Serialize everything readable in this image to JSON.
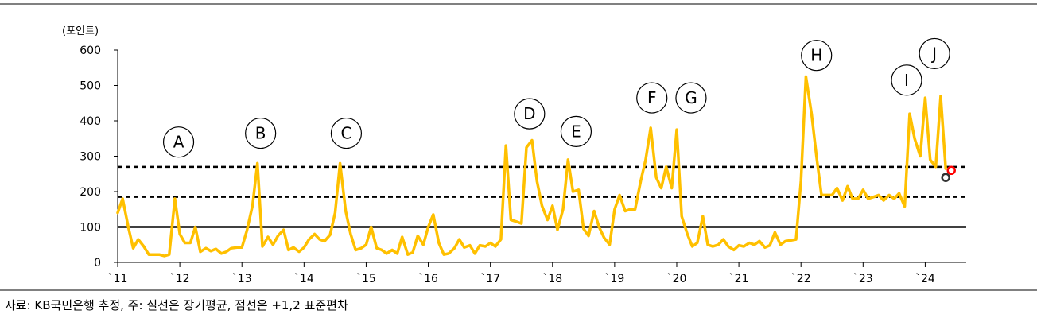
{
  "chart_data": {
    "type": "line",
    "y_unit_label": "(포인트)",
    "ylim": [
      0,
      600
    ],
    "yticks": [
      0,
      100,
      200,
      300,
      400,
      500,
      600
    ],
    "xlim": [
      2011,
      2024.75
    ],
    "x_ticks": [
      {
        "label": "`11",
        "x": 2011
      },
      {
        "label": "`12",
        "x": 2012
      },
      {
        "label": "`13",
        "x": 2013
      },
      {
        "label": "`14",
        "x": 2014
      },
      {
        "label": "`15",
        "x": 2015
      },
      {
        "label": "`16",
        "x": 2016
      },
      {
        "label": "`17",
        "x": 2017
      },
      {
        "label": "`18",
        "x": 2018
      },
      {
        "label": "`19",
        "x": 2019
      },
      {
        "label": "`20",
        "x": 2020
      },
      {
        "label": "`21",
        "x": 2021
      },
      {
        "label": "`22",
        "x": 2022
      },
      {
        "label": "`23",
        "x": 2023
      },
      {
        "label": "`24",
        "x": 2024
      }
    ],
    "grid": false,
    "series": [
      {
        "color": "#FFC000",
        "x": [
          2011.0,
          2011.08,
          2011.17,
          2011.25,
          2011.33,
          2011.42,
          2011.5,
          2011.58,
          2011.67,
          2011.75,
          2011.83,
          2011.92,
          2012.0,
          2012.08,
          2012.17,
          2012.25,
          2012.33,
          2012.42,
          2012.5,
          2012.58,
          2012.67,
          2012.75,
          2012.83,
          2012.92,
          2013.0,
          2013.08,
          2013.17,
          2013.25,
          2013.33,
          2013.42,
          2013.5,
          2013.58,
          2013.67,
          2013.75,
          2013.83,
          2013.92,
          2014.0,
          2014.08,
          2014.17,
          2014.25,
          2014.33,
          2014.42,
          2014.5,
          2014.58,
          2014.67,
          2014.75,
          2014.83,
          2014.92,
          2015.0,
          2015.08,
          2015.17,
          2015.25,
          2015.33,
          2015.42,
          2015.5,
          2015.58,
          2015.67,
          2015.75,
          2015.83,
          2015.92,
          2016.0,
          2016.08,
          2016.17,
          2016.25,
          2016.33,
          2016.42,
          2016.5,
          2016.58,
          2016.67,
          2016.75,
          2016.83,
          2016.92,
          2017.0,
          2017.08,
          2017.17,
          2017.25,
          2017.33,
          2017.42,
          2017.5,
          2017.58,
          2017.67,
          2017.75,
          2017.83,
          2017.92,
          2018.0,
          2018.08,
          2018.17,
          2018.25,
          2018.33,
          2018.42,
          2018.5,
          2018.58,
          2018.67,
          2018.75,
          2018.83,
          2018.92,
          2019.0,
          2019.08,
          2019.17,
          2019.25,
          2019.33,
          2019.42,
          2019.5,
          2019.58,
          2019.67,
          2019.75,
          2019.83,
          2019.92,
          2020.0,
          2020.08,
          2020.17,
          2020.25,
          2020.33,
          2020.42,
          2020.5,
          2020.58,
          2020.67,
          2020.75,
          2020.83,
          2020.92,
          2021.0,
          2021.08,
          2021.17,
          2021.25,
          2021.33,
          2021.42,
          2021.5,
          2021.58,
          2021.67,
          2021.75,
          2021.83,
          2021.92,
          2022.0,
          2022.08,
          2022.17,
          2022.25,
          2022.33,
          2022.42,
          2022.5,
          2022.58,
          2022.67,
          2022.75,
          2022.83,
          2022.92,
          2023.0,
          2023.08,
          2023.17,
          2023.25,
          2023.33,
          2023.42,
          2023.5,
          2023.58,
          2023.67,
          2023.75,
          2023.83,
          2023.92,
          2024.0,
          2024.08,
          2024.17,
          2024.25,
          2024.33
        ],
        "values": [
          140,
          180,
          100,
          40,
          65,
          45,
          22,
          22,
          22,
          18,
          22,
          180,
          80,
          55,
          55,
          100,
          30,
          40,
          32,
          38,
          25,
          30,
          40,
          42,
          42,
          90,
          160,
          280,
          45,
          72,
          50,
          75,
          92,
          35,
          42,
          30,
          42,
          65,
          80,
          65,
          60,
          78,
          140,
          280,
          145,
          80,
          35,
          40,
          50,
          100,
          40,
          35,
          25,
          35,
          25,
          72,
          22,
          28,
          75,
          50,
          100,
          135,
          55,
          22,
          25,
          40,
          65,
          42,
          48,
          25,
          48,
          45,
          55,
          45,
          65,
          330,
          120,
          115,
          110,
          325,
          345,
          230,
          160,
          120,
          160,
          92,
          150,
          290,
          200,
          205,
          95,
          75,
          145,
          100,
          70,
          50,
          150,
          190,
          145,
          150,
          150,
          230,
          290,
          380,
          240,
          210,
          270,
          210,
          375,
          130,
          80,
          45,
          55,
          130,
          50,
          45,
          50,
          65,
          45,
          35,
          48,
          45,
          55,
          50,
          60,
          42,
          48,
          85,
          50,
          60,
          62,
          65,
          230,
          525,
          420,
          300,
          190,
          190,
          190,
          210,
          175,
          215,
          180,
          180,
          205,
          180,
          185,
          190,
          175,
          190,
          180,
          195,
          158,
          420,
          350,
          300,
          465,
          290,
          270,
          470,
          265
        ]
      }
    ],
    "reference_lines": [
      {
        "style": "solid",
        "value": 100
      },
      {
        "style": "dashed",
        "value": 185
      },
      {
        "style": "dashed",
        "value": 270
      }
    ],
    "markers": [
      {
        "x": 2024.33,
        "y": 240,
        "color": "#333333"
      },
      {
        "x": 2024.42,
        "y": 260,
        "color": "#FF0000"
      }
    ],
    "annotations": [
      {
        "text": "A",
        "x": 2011.98,
        "y": 340
      },
      {
        "text": "B",
        "x": 2013.3,
        "y": 365
      },
      {
        "text": "C",
        "x": 2014.68,
        "y": 365
      },
      {
        "text": "D",
        "x": 2017.63,
        "y": 420
      },
      {
        "text": "E",
        "x": 2018.38,
        "y": 370
      },
      {
        "text": "F",
        "x": 2019.6,
        "y": 465
      },
      {
        "text": "G",
        "x": 2020.23,
        "y": 465
      },
      {
        "text": "H",
        "x": 2022.25,
        "y": 585
      },
      {
        "text": "I",
        "x": 2023.7,
        "y": 515
      },
      {
        "text": "J",
        "x": 2024.15,
        "y": 590
      }
    ]
  },
  "source_note": "자료: KB국민은행 추정, 주: 실선은 장기평균, 점선은 +1,2 표준편차"
}
